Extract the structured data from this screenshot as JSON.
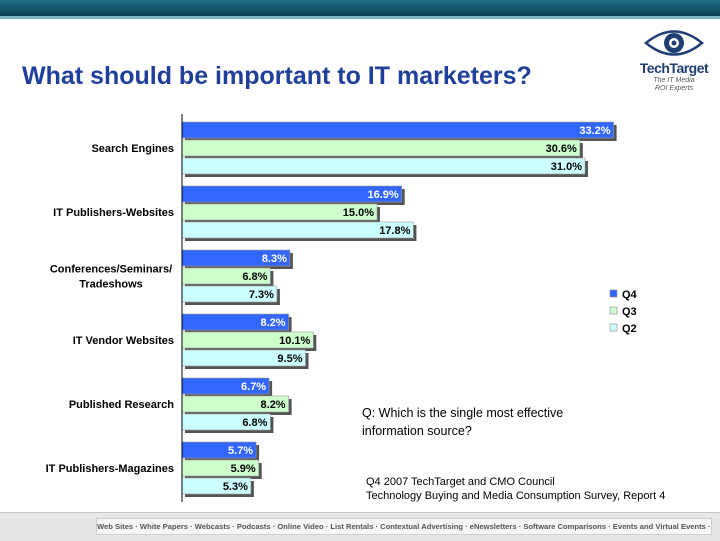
{
  "header": {
    "title": "What should be important to IT marketers?"
  },
  "logo": {
    "icon": "eye-icon",
    "wordmark": "TechTarget",
    "tagline_line1": "The IT Media",
    "tagline_line2": "ROI Experts"
  },
  "chart_data": {
    "type": "bar",
    "orientation": "horizontal",
    "title": "",
    "xlabel": "",
    "ylabel": "",
    "xlim": [
      0,
      40
    ],
    "grid": false,
    "legend_position": "right",
    "categories": [
      "Search Engines",
      "IT Publishers-Websites",
      "Conferences/Seminars/ Tradeshows",
      "IT Vendor Websites",
      "Published Research",
      "IT Publishers-Magazines"
    ],
    "category_lines": [
      [
        "Search Engines"
      ],
      [
        "IT Publishers-Websites"
      ],
      [
        "Conferences/Seminars/",
        "Tradeshows"
      ],
      [
        "IT Vendor Websites"
      ],
      [
        "Published Research"
      ],
      [
        "IT Publishers-Magazines"
      ]
    ],
    "series": [
      {
        "name": "Q4",
        "color": "#3366ff",
        "values": [
          33.2,
          16.9,
          8.3,
          8.2,
          6.7,
          5.7
        ],
        "labels": [
          "33.2%",
          "16.9%",
          "8.3%",
          "8.2%",
          "6.7%",
          "5.7%"
        ]
      },
      {
        "name": "Q3",
        "color": "#ccffcc",
        "values": [
          30.6,
          15.0,
          6.8,
          10.1,
          8.2,
          5.9
        ],
        "labels": [
          "30.6%",
          "15.0%",
          "6.8%",
          "10.1%",
          "8.2%",
          "5.9%"
        ]
      },
      {
        "name": "Q2",
        "color": "#ccffff",
        "values": [
          31.0,
          17.8,
          7.3,
          9.5,
          6.8,
          5.3
        ],
        "labels": [
          "31.0%",
          "17.8%",
          "7.3%",
          "9.5%",
          "6.8%",
          "5.3%"
        ]
      }
    ]
  },
  "annotation": {
    "question_line1": "Q: Which is the single most effective",
    "question_line2": "information source?",
    "source_line1": "Q4 2007 TechTarget and CMO Council",
    "source_line2": "Technology Buying and Media Consumption Survey, Report 4"
  },
  "footer": {
    "links": "Web Sites · White Papers · Webcasts · Podcasts · Online Video · List Rentals · Contextual Advertising · eNewsletters · Software Comparisons · Events and Virtual Events · Print"
  }
}
